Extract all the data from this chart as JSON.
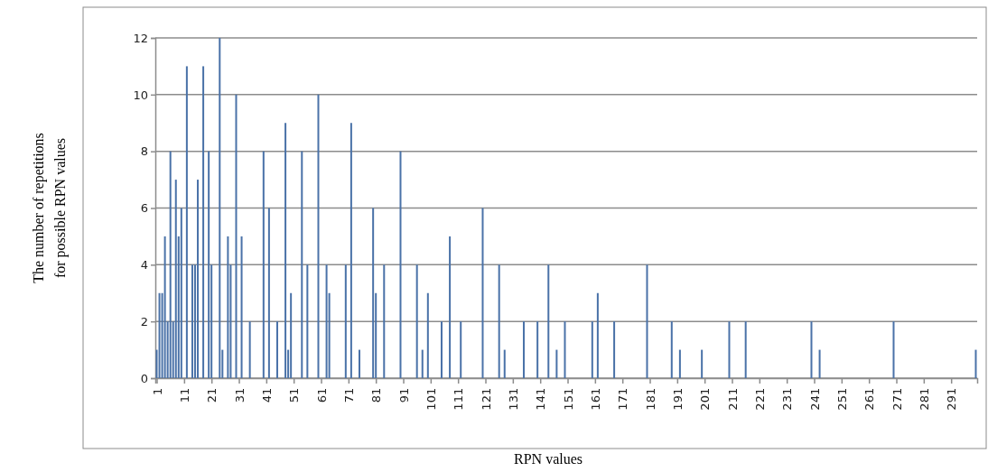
{
  "chart_data": {
    "type": "bar",
    "xlabel": "RPN values",
    "ylabel": "The number of repetitions\nfor possible RPN values",
    "x": [
      1,
      2,
      3,
      4,
      5,
      6,
      7,
      8,
      9,
      10,
      12,
      14,
      15,
      16,
      18,
      20,
      21,
      24,
      25,
      27,
      28,
      30,
      32,
      35,
      40,
      42,
      45,
      48,
      49,
      50,
      54,
      56,
      60,
      63,
      64,
      70,
      72,
      75,
      80,
      81,
      84,
      90,
      96,
      98,
      100,
      105,
      108,
      112,
      120,
      126,
      128,
      135,
      140,
      144,
      147,
      150,
      160,
      162,
      168,
      180,
      189,
      192,
      200,
      210,
      216,
      240,
      243,
      270,
      300
    ],
    "values": [
      1,
      3,
      3,
      5,
      2,
      8,
      2,
      7,
      5,
      6,
      11,
      4,
      4,
      7,
      11,
      8,
      4,
      12,
      1,
      5,
      4,
      10,
      5,
      2,
      8,
      6,
      2,
      9,
      1,
      3,
      8,
      4,
      10,
      4,
      3,
      4,
      9,
      1,
      6,
      3,
      4,
      8,
      4,
      1,
      3,
      2,
      5,
      2,
      6,
      4,
      1,
      2,
      2,
      4,
      1,
      2,
      2,
      3,
      2,
      4,
      2,
      1,
      1,
      2,
      2,
      2,
      1,
      2,
      1
    ],
    "color": "#4a72a8",
    "xlim": [
      0.5,
      300.5
    ],
    "xticks": [
      1,
      11,
      21,
      31,
      41,
      51,
      61,
      71,
      81,
      91,
      101,
      111,
      121,
      131,
      141,
      151,
      161,
      171,
      181,
      191,
      201,
      211,
      221,
      231,
      241,
      251,
      261,
      271,
      281,
      291
    ],
    "ylim": [
      0,
      12
    ],
    "yticks": [
      0,
      2,
      4,
      6,
      8,
      10,
      12
    ],
    "grid": "y"
  }
}
